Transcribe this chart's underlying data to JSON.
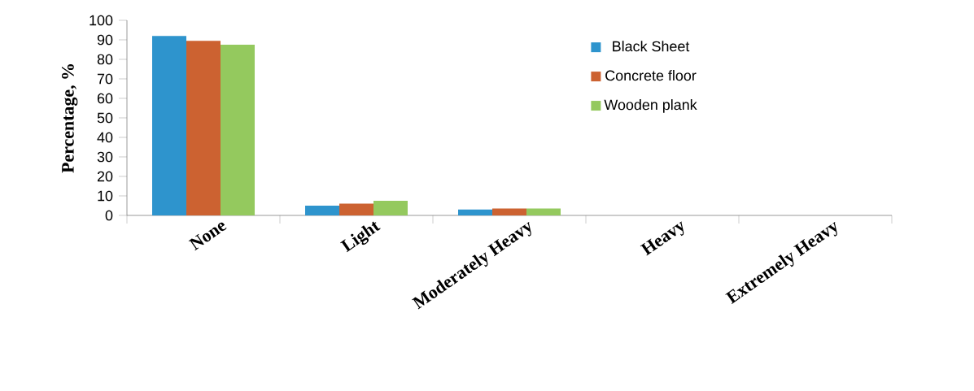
{
  "chart_data": {
    "type": "bar",
    "ylabel": "Percentage, %",
    "categories": [
      "None",
      "Light",
      "Moderately Heavy",
      "Heavy",
      "Extremely Heavy"
    ],
    "series": [
      {
        "name": "Black Sheet",
        "color": "#2e94cd",
        "values": [
          92,
          5,
          3,
          0,
          0
        ]
      },
      {
        "name": "Concrete floor",
        "color": "#cc6231",
        "values": [
          89.5,
          6,
          3.5,
          0,
          0
        ]
      },
      {
        "name": "Wooden plank",
        "color": "#94c95e",
        "values": [
          87.5,
          7.5,
          3.5,
          0,
          0
        ]
      }
    ],
    "ylim": [
      0,
      100
    ],
    "yticks": [
      0,
      10,
      20,
      30,
      40,
      50,
      60,
      70,
      80,
      90,
      100
    ],
    "grid": false,
    "legend": "top right"
  }
}
